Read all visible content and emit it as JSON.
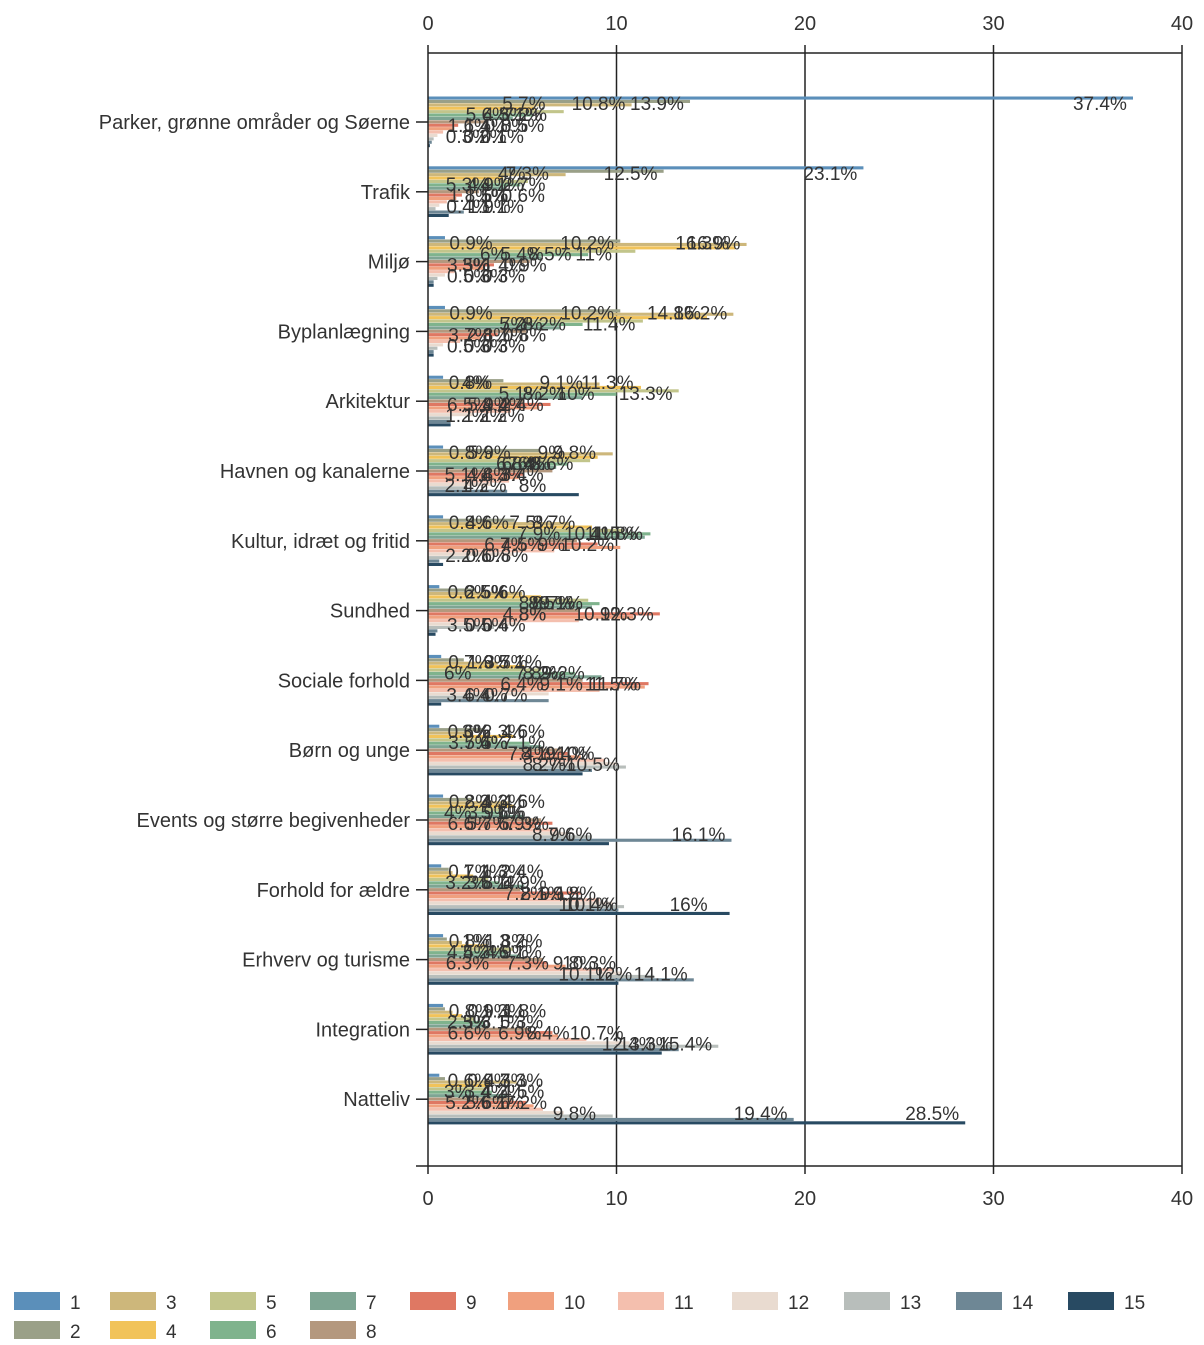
{
  "chart_data": {
    "type": "bar",
    "orientation": "horizontal",
    "title": "",
    "xlabel": "",
    "ylabel": "",
    "xlim": [
      0,
      40
    ],
    "x_ticks": [
      0,
      10,
      20,
      30,
      40
    ],
    "value_suffix": "%",
    "grid": "vertical",
    "legend_position": "bottom",
    "categories": [
      "Parker, grønne områder og Søerne",
      "Trafik",
      "Miljø",
      "Byplanlægning",
      "Arkitektur",
      "Havnen og kanalerne",
      "Kultur, idræt og fritid",
      "Sundhed",
      "Sociale forhold",
      "Børn og unge",
      "Events og større begivenheder",
      "Forhold for ældre",
      "Erhverv og turisme",
      "Integration",
      "Natteliv"
    ],
    "series": [
      {
        "name": "1",
        "color": "#5b8fba",
        "values": [
          37.4,
          23.1,
          0.9,
          0.9,
          0.8,
          0.8,
          0.8,
          0.6,
          0.7,
          0.6,
          0.8,
          0.7,
          0.8,
          0.8,
          0.6
        ]
      },
      {
        "name": "2",
        "color": "#9aa088",
        "values": [
          13.9,
          12.5,
          10.2,
          10.2,
          4.0,
          5.9,
          4.6,
          2.5,
          1.9,
          3.0,
          2.3,
          1.1,
          1.0,
          0.9,
          0.9
        ]
      },
      {
        "name": "3",
        "color": "#cdb77b",
        "values": [
          10.8,
          7.3,
          16.9,
          16.2,
          9.1,
          9.8,
          7.5,
          5.0,
          3.7,
          2.3,
          4.3,
          1.3,
          1.8,
          1.3,
          4.7
        ]
      },
      {
        "name": "4",
        "color": "#f1c35a",
        "values": [
          5.7,
          4.0,
          16.3,
          14.8,
          11.3,
          9.0,
          8.7,
          6.0,
          5.1,
          4.6,
          4.6,
          2.4,
          3.2,
          1.8,
          3.3
        ]
      },
      {
        "name": "5",
        "color": "#c2c58b",
        "values": [
          7.2,
          5.3,
          11.0,
          11.4,
          13.3,
          8.6,
          10.4,
          8.5,
          6.0,
          3.7,
          4.0,
          3.2,
          4.5,
          2.5,
          3.0
        ]
      },
      {
        "name": "6",
        "color": "#7fb38d",
        "values": [
          5.6,
          4.9,
          8.5,
          8.2,
          10.0,
          7.4,
          11.8,
          9.1,
          7.8,
          5.4,
          3.9,
          3.8,
          4.2,
          3.0,
          3.4
        ]
      },
      {
        "name": "7",
        "color": "#7ea593",
        "values": [
          4.5,
          4.1,
          6.0,
          7.0,
          8.2,
          6.8,
          11.5,
          8.7,
          9.2,
          6.0,
          5.1,
          5.1,
          4.9,
          3.1,
          4.2
        ]
      },
      {
        "name": "8",
        "color": "#b4987e",
        "values": [
          3.1,
          2.7,
          5.4,
          5.2,
          5.1,
          6.6,
          7.9,
          8.0,
          8.2,
          7.1,
          6.0,
          4.9,
          6.1,
          5.3,
          4.5
        ]
      },
      {
        "name": "9",
        "color": "#df7863",
        "values": [
          1.6,
          1.8,
          3.5,
          3.7,
          6.5,
          5.1,
          9.0,
          12.3,
          11.7,
          7.4,
          6.6,
          8.1,
          6.3,
          6.6,
          5.2
        ]
      },
      {
        "name": "10",
        "color": "#f0a07e",
        "values": [
          1.4,
          1.5,
          3.0,
          2.8,
          5.9,
          4.8,
          10.2,
          10.9,
          11.5,
          8.1,
          5.7,
          7.2,
          7.3,
          6.9,
          5.6
        ]
      },
      {
        "name": "11",
        "color": "#f4bfae",
        "values": [
          0.8,
          1.0,
          1.4,
          1.7,
          4.4,
          4.3,
          6.7,
          8.0,
          9.1,
          9.4,
          6.9,
          9.1,
          9.8,
          8.4,
          6.1
        ]
      },
      {
        "name": "12",
        "color": "#e9dbd0",
        "values": [
          0.5,
          0.6,
          0.9,
          0.8,
          2.4,
          3.4,
          4.5,
          4.8,
          6.4,
          10.0,
          7.3,
          9.8,
          10.3,
          10.7,
          7.2
        ]
      },
      {
        "name": "13",
        "color": "#b8bebb",
        "values": [
          0.3,
          0.4,
          0.5,
          0.5,
          1.2,
          2.1,
          2.2,
          3.5,
          3.4,
          10.5,
          8.7,
          10.4,
          12.0,
          15.4,
          9.8
        ]
      },
      {
        "name": "14",
        "color": "#6e8795",
        "values": [
          0.2,
          1.9,
          0.3,
          0.3,
          1.2,
          4.2,
          0.6,
          0.5,
          6.4,
          8.7,
          16.1,
          10.1,
          14.1,
          13.3,
          19.4
        ]
      },
      {
        "name": "15",
        "color": "#284a62",
        "values": [
          0.1,
          1.1,
          0.3,
          0.3,
          1.2,
          8.0,
          0.8,
          0.4,
          0.7,
          8.2,
          9.6,
          16.0,
          10.1,
          12.4,
          28.5
        ]
      }
    ]
  }
}
